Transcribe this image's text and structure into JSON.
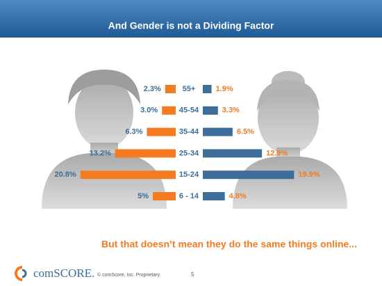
{
  "chart_data": {
    "type": "butterfly",
    "title": "And Gender is not a Dividing Factor",
    "categories": [
      "55+",
      "45-54",
      "35-44",
      "25-34",
      "15-24",
      "6 - 14"
    ],
    "series": [
      {
        "color": "#f47b20",
        "values": [
          2.3,
          3.0,
          6.3,
          13.2,
          20.8,
          5
        ],
        "value_labels": [
          "2.3%",
          "3.0%",
          "6.3%",
          "13.2%",
          "20.8%",
          "5%"
        ]
      },
      {
        "color": "#3d6d99",
        "values": [
          1.9,
          3.3,
          6.5,
          12.9,
          19.9,
          4.8
        ],
        "value_labels": [
          "1.9%",
          "3.3%",
          "6.5%",
          "12.9%",
          "19.9%",
          "4.8%"
        ]
      }
    ],
    "annotation": "But that doesn’t mean they do the same things online..."
  },
  "footer": {
    "logo": "comSCORE.",
    "copyright": "© comScore, Inc.   Proprietary.",
    "page": "5"
  }
}
